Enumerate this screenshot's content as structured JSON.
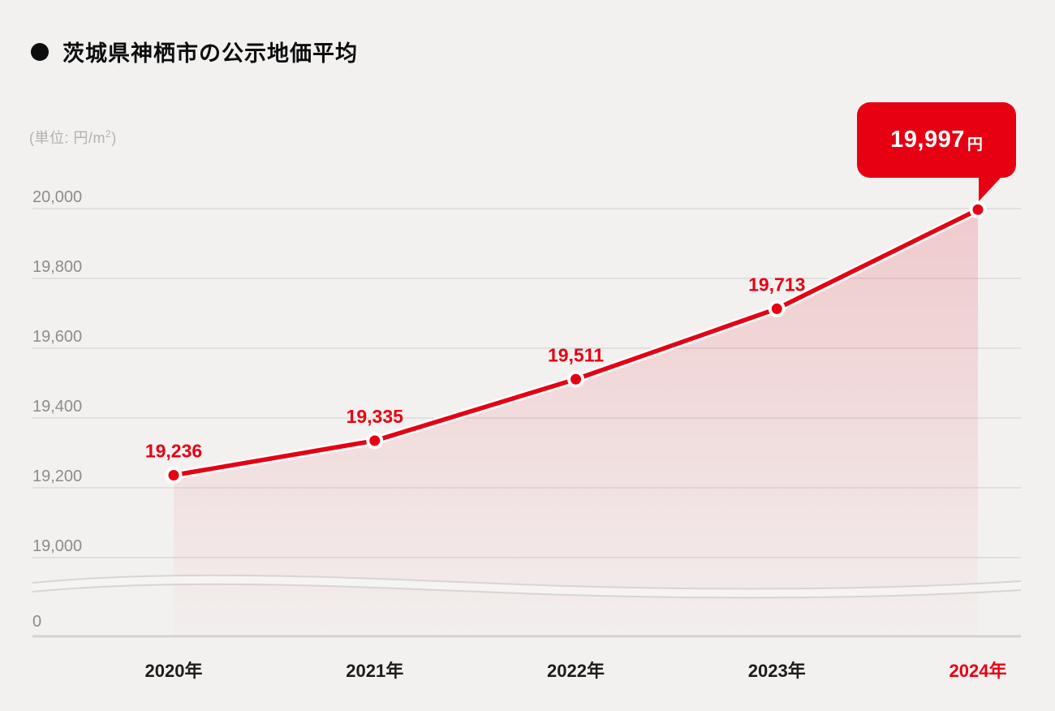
{
  "header": {
    "bullet_icon": "●",
    "title": "茨城県神栖市の公示地価平均"
  },
  "unit_label": {
    "prefix": "(単位: 円/m",
    "sup": "2",
    "suffix": ")"
  },
  "callout": {
    "value": "19,997",
    "unit": "円",
    "color": "#e60012",
    "text_color": "#ffffff"
  },
  "chart_data": {
    "type": "line",
    "title": "茨城県神栖市の公示地価平均",
    "unit": "円/m²",
    "categories": [
      "2020年",
      "2021年",
      "2022年",
      "2023年",
      "2024年"
    ],
    "x": [
      2020,
      2021,
      2022,
      2023,
      2024
    ],
    "values": [
      19236,
      19335,
      19511,
      19713,
      19997
    ],
    "point_labels": [
      "19,236",
      "19,335",
      "19,511",
      "19,713",
      ""
    ],
    "final_value_callout": "19,997円",
    "y_ticks": [
      20000,
      19800,
      19600,
      19400,
      19200,
      19000
    ],
    "y_tick_labels": [
      "20,000",
      "19,800",
      "19,600",
      "19,400",
      "19,200",
      "19,000"
    ],
    "zero_tick_label": "0",
    "axis_break": true,
    "ylim": [
      19000,
      20050
    ],
    "grid": true,
    "legend": false,
    "line_color": "#e60012",
    "point_color": "#e60012",
    "label_color": "#e60012",
    "area_fill_top": "rgba(230,0,18,0.16)",
    "area_fill_bottom": "rgba(230,0,18,0.01)",
    "grid_color": "#dddbd9",
    "axis_color": "#d4d2d0",
    "break_band_fill": "#f5f4f2",
    "break_line_color": "#d7d5d3",
    "tick_label_color": "#8d8b8b",
    "x_label_color": "#1c1c1c",
    "highlight_last_x_color": "#e60012"
  }
}
